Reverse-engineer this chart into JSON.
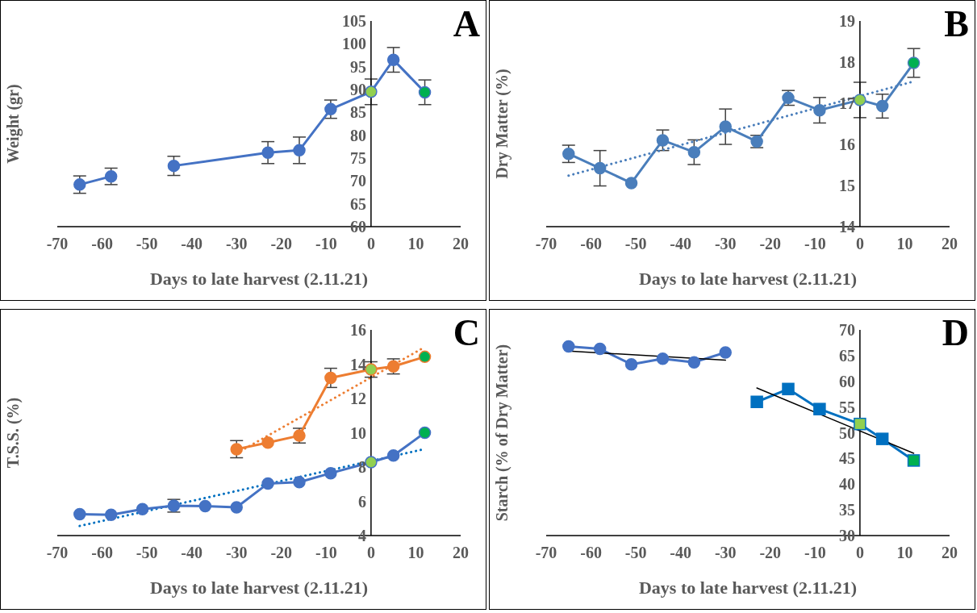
{
  "chart_data": [
    {
      "type": "line",
      "title": "A",
      "xlabel": "Days to late harvest (2.11.21)",
      "ylabel": "Weight (gr)",
      "xlim": [
        -70,
        20
      ],
      "xticks": [
        -70,
        -60,
        -50,
        -40,
        -30,
        -20,
        -10,
        0,
        10,
        20
      ],
      "ylim": [
        60,
        105
      ],
      "yticks": [
        60,
        65,
        70,
        75,
        80,
        85,
        90,
        95,
        100,
        105
      ],
      "series": [
        {
          "color": "#4472c4",
          "marker": "circle",
          "x": [
            -65,
            -58,
            -51,
            -44,
            -23,
            -16,
            -9,
            0,
            5,
            12
          ],
          "values": [
            69.2,
            71.0,
            null,
            73.3,
            76.2,
            76.7,
            85.7,
            89.5,
            96.5,
            89.4
          ],
          "errors": [
            1.9,
            1.8,
            null,
            2.1,
            2.4,
            2.9,
            2.0,
            2.8,
            2.7,
            2.7
          ],
          "colors": [
            "#4472c4",
            "#4472c4",
            "#4472c4",
            "#4472c4",
            "#4472c4",
            "#4472c4",
            "#4472c4",
            "#92d050",
            "#4472c4",
            "#00b050"
          ]
        }
      ]
    },
    {
      "type": "line",
      "title": "B",
      "xlabel": "Days to late harvest (2.11.21)",
      "ylabel": "Dry Matter (%)",
      "xlim": [
        -70,
        20
      ],
      "xticks": [
        -70,
        -60,
        -50,
        -40,
        -30,
        -20,
        -10,
        0,
        10,
        20
      ],
      "ylim": [
        14,
        19
      ],
      "yticks": [
        14,
        15,
        16,
        17,
        18,
        19
      ],
      "series": [
        {
          "color": "#4a7ebb",
          "marker": "circle",
          "x": [
            -65,
            -58,
            -51,
            -44,
            -37,
            -30,
            -23,
            -16,
            -9,
            0,
            5,
            12
          ],
          "values": [
            15.77,
            15.42,
            15.06,
            16.1,
            15.81,
            16.43,
            16.07,
            17.13,
            16.83,
            17.08,
            16.93,
            17.98
          ],
          "errors": [
            0.21,
            0.43,
            null,
            0.25,
            0.3,
            0.43,
            0.15,
            0.18,
            0.31,
            0.43,
            0.29,
            0.35
          ],
          "colors": [
            "#4a7ebb",
            "#4a7ebb",
            "#4a7ebb",
            "#4a7ebb",
            "#4a7ebb",
            "#4a7ebb",
            "#4a7ebb",
            "#4a7ebb",
            "#4a7ebb",
            "#92d050",
            "#4a7ebb",
            "#00b050"
          ]
        },
        {
          "type": "line",
          "color": "#4a7ebb",
          "marker": "none",
          "line_style": "dotted",
          "x": [
            -65,
            12
          ],
          "values": [
            15.24,
            17.53
          ]
        }
      ]
    },
    {
      "type": "line",
      "title": "C",
      "xlabel": "Days to late harvest (2.11.21)",
      "ylabel": "T.S.S. (%)",
      "xlim": [
        -70,
        20
      ],
      "xticks": [
        -70,
        -60,
        -50,
        -40,
        -30,
        -20,
        -10,
        0,
        10,
        20
      ],
      "ylim": [
        4,
        16
      ],
      "yticks": [
        4,
        6,
        8,
        10,
        12,
        14,
        16
      ],
      "series": [
        {
          "type": "line",
          "color": "#0070c0",
          "marker": "none",
          "line_style": "dotted",
          "x": [
            -65,
            12
          ],
          "values": [
            4.56,
            9.05
          ]
        },
        {
          "type": "line",
          "color": "#ed7d31",
          "marker": "none",
          "line_style": "dotted",
          "x": [
            -30,
            12
          ],
          "values": [
            8.8,
            15.0
          ]
        },
        {
          "color": "#4472c4",
          "marker": "circle",
          "x": [
            -65,
            -58,
            -51,
            -44,
            -37,
            -30,
            -23,
            -16,
            -9,
            0,
            5,
            12
          ],
          "values": [
            5.25,
            5.21,
            5.54,
            5.74,
            5.72,
            5.65,
            7.04,
            7.12,
            7.64,
            8.28,
            8.67,
            10.0
          ],
          "errors": [
            null,
            null,
            null,
            0.37,
            null,
            null,
            null,
            null,
            null,
            null,
            null,
            null
          ],
          "colors": [
            "#4472c4",
            "#4472c4",
            "#4472c4",
            "#4472c4",
            "#4472c4",
            "#4472c4",
            "#4472c4",
            "#4472c4",
            "#4472c4",
            "#92d050",
            "#4472c4",
            "#00b050"
          ]
        },
        {
          "color": "#ed7d31",
          "marker": "circle",
          "x": [
            -30,
            -23,
            -16,
            -9,
            0,
            5,
            12
          ],
          "values": [
            9.04,
            9.42,
            9.83,
            13.2,
            13.69,
            13.87,
            14.43
          ],
          "errors": [
            0.5,
            null,
            0.43,
            0.56,
            0.45,
            0.44,
            null
          ],
          "colors": [
            "#ed7d31",
            "#ed7d31",
            "#ed7d31",
            "#ed7d31",
            "#92d050",
            "#ed7d31",
            "#00b050"
          ]
        }
      ]
    },
    {
      "type": "line",
      "title": "D",
      "xlabel": "Days to late harvest (2.11.21)",
      "ylabel": "Starch (% of Dry Matter)",
      "xlim": [
        -70,
        20
      ],
      "xticks": [
        -70,
        -60,
        -50,
        -40,
        -30,
        -20,
        -10,
        0,
        10,
        20
      ],
      "ylim": [
        30,
        70
      ],
      "yticks": [
        30,
        35,
        40,
        45,
        50,
        55,
        60,
        65,
        70
      ],
      "series": [
        {
          "color": "#4472c4",
          "marker": "circle",
          "x": [
            -65,
            -58,
            -51,
            -44,
            -37,
            -30
          ],
          "values": [
            66.8,
            66.3,
            63.3,
            64.4,
            63.7,
            65.6
          ]
        },
        {
          "color": "#0070c0",
          "marker": "square",
          "x": [
            -23,
            -16,
            -9,
            0,
            5,
            12
          ],
          "values": [
            56.0,
            58.5,
            54.6,
            51.7,
            48.8,
            44.6
          ],
          "colors": [
            "#0070c0",
            "#0070c0",
            "#0070c0",
            "#92d050",
            "#0070c0",
            "#00b050"
          ]
        },
        {
          "type": "line",
          "color": "#000000",
          "marker": "none",
          "line_style": "solid",
          "x": [
            -65,
            -30
          ],
          "values": [
            65.9,
            64.1
          ]
        },
        {
          "type": "line",
          "color": "#000000",
          "marker": "none",
          "line_style": "solid",
          "x": [
            -23,
            12
          ],
          "values": [
            58.7,
            46.0
          ]
        }
      ]
    }
  ]
}
